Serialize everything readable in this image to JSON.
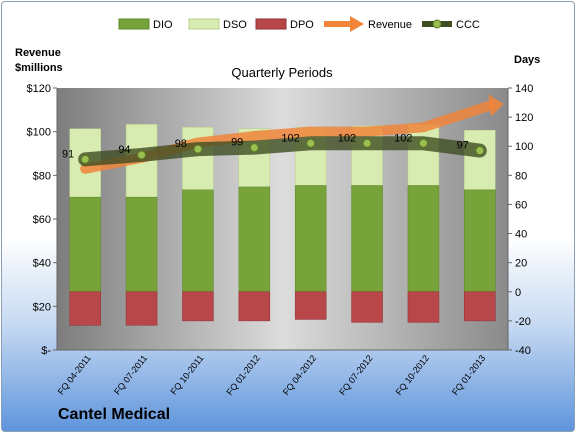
{
  "company": "Cantel Medical",
  "chart_data": {
    "type": "bar",
    "subtitle": "Quarterly Periods",
    "left_axis_title": [
      "Revenue",
      "$millions"
    ],
    "right_axis_title": "Days",
    "left_ylim": [
      0,
      120
    ],
    "left_ticks": [
      "$-",
      "$20",
      "$40",
      "$60",
      "$80",
      "$100",
      "$120"
    ],
    "right_ylim": [
      -40,
      140
    ],
    "right_ticks": [
      "-40",
      "-20",
      "0",
      "20",
      "40",
      "60",
      "80",
      "100",
      "120",
      "140"
    ],
    "categories": [
      "FQ 04-2011",
      "FQ 07-2011",
      "FQ 10-2011",
      "FQ 01-2012",
      "FQ 04-2012",
      "FQ 07-2012",
      "FQ 10-2012",
      "FQ 01-2013"
    ],
    "legend": [
      "DIO",
      "DSO",
      "DPO",
      "Revenue",
      "CCC"
    ],
    "series": [
      {
        "name": "DIO",
        "axis": "days",
        "values": [
          65,
          65,
          70,
          72,
          73,
          73,
          73,
          70
        ],
        "color": "#77a33a"
      },
      {
        "name": "DSO",
        "axis": "days",
        "values": [
          47,
          50,
          43,
          40,
          40,
          41,
          42,
          41
        ],
        "color": "#d8ebb0"
      },
      {
        "name": "DPO",
        "axis": "days",
        "values": [
          -23,
          -23,
          -20,
          -20,
          -19,
          -21,
          -21,
          -20
        ],
        "color": "#b8474a"
      },
      {
        "name": "Revenue",
        "axis": "revenue",
        "values": [
          83,
          88,
          95,
          98,
          100,
          100,
          102,
          105
        ],
        "color": "#f0853a"
      },
      {
        "name": "CCC",
        "axis": "days",
        "values": [
          91,
          94,
          98,
          99,
          102,
          102,
          102,
          97
        ],
        "color": "#4a5a2a"
      }
    ],
    "ccc_labels": [
      "91",
      "94",
      "98",
      "99",
      "102",
      "102",
      "102",
      "97"
    ],
    "grid": false,
    "legend_position": "top"
  }
}
